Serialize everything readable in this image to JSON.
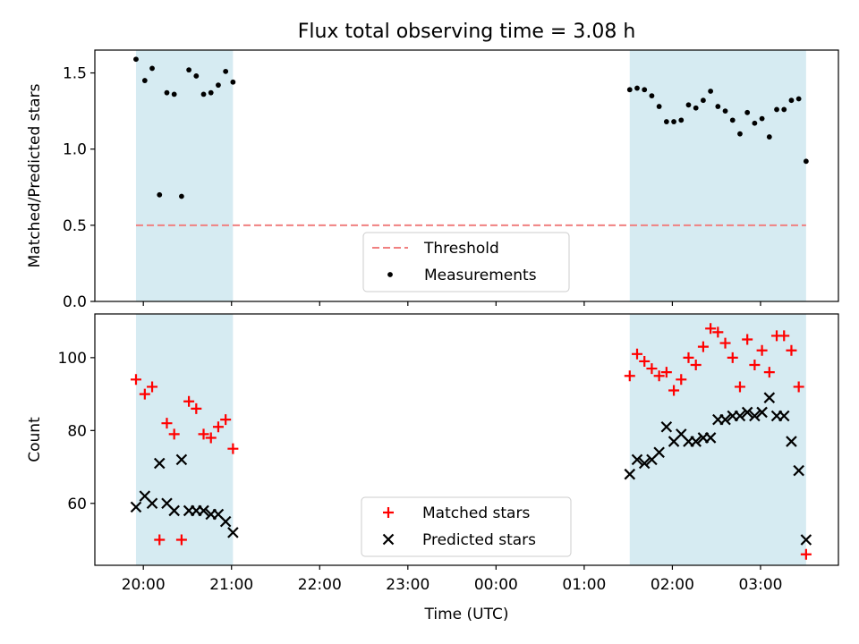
{
  "colors": {
    "band": "#add8e6",
    "threshold": "#f08080",
    "matched": "#ff0000",
    "predicted": "#000000",
    "measurement": "#000000"
  },
  "chart_data": [
    {
      "type": "scatter",
      "title": "Flux total observing time = 3.08 h",
      "xlabel": "",
      "ylabel": "Matched/Predicted stars",
      "x_axis": "time (UTC), shared with lower panel",
      "ylim": [
        0,
        1.65
      ],
      "yticks": [
        "0.0",
        "0.5",
        "1.0",
        "1.5"
      ],
      "ytick_values": [
        0,
        0.5,
        1.0,
        1.5
      ],
      "shaded_intervals": [
        [
          "19:55",
          "21:01"
        ],
        [
          "01:31",
          "03:31"
        ]
      ],
      "legend_position": "bottom-center",
      "series": [
        {
          "name": "Threshold",
          "kind": "dashed-line",
          "color": "#f08080",
          "points": [
            [
              "19:55",
              0.5
            ],
            [
              "03:31",
              0.5
            ]
          ]
        },
        {
          "name": "Measurements",
          "kind": "dot",
          "color": "#000000",
          "points": [
            [
              "19:55",
              1.59
            ],
            [
              "20:01",
              1.45
            ],
            [
              "20:06",
              1.53
            ],
            [
              "20:11",
              0.7
            ],
            [
              "20:16",
              1.37
            ],
            [
              "20:21",
              1.36
            ],
            [
              "20:26",
              0.69
            ],
            [
              "20:31",
              1.52
            ],
            [
              "20:36",
              1.48
            ],
            [
              "20:41",
              1.36
            ],
            [
              "20:46",
              1.37
            ],
            [
              "20:51",
              1.42
            ],
            [
              "20:56",
              1.51
            ],
            [
              "21:01",
              1.44
            ],
            [
              "01:31",
              1.39
            ],
            [
              "01:36",
              1.4
            ],
            [
              "01:41",
              1.39
            ],
            [
              "01:46",
              1.35
            ],
            [
              "01:51",
              1.28
            ],
            [
              "01:56",
              1.18
            ],
            [
              "02:01",
              1.18
            ],
            [
              "02:06",
              1.19
            ],
            [
              "02:11",
              1.29
            ],
            [
              "02:16",
              1.27
            ],
            [
              "02:21",
              1.32
            ],
            [
              "02:26",
              1.38
            ],
            [
              "02:31",
              1.28
            ],
            [
              "02:36",
              1.25
            ],
            [
              "02:41",
              1.19
            ],
            [
              "02:46",
              1.1
            ],
            [
              "02:51",
              1.24
            ],
            [
              "02:56",
              1.17
            ],
            [
              "03:01",
              1.2
            ],
            [
              "03:06",
              1.08
            ],
            [
              "03:11",
              1.26
            ],
            [
              "03:16",
              1.26
            ],
            [
              "03:21",
              1.32
            ],
            [
              "03:26",
              1.33
            ],
            [
              "03:31",
              0.92
            ]
          ]
        }
      ]
    },
    {
      "type": "scatter",
      "title": "",
      "xlabel": "Time (UTC)",
      "ylabel": "Count",
      "ylim": [
        43,
        112
      ],
      "yticks": [
        "60",
        "80",
        "100"
      ],
      "ytick_values": [
        60,
        80,
        100
      ],
      "xticks": [
        "20:00",
        "21:00",
        "22:00",
        "23:00",
        "00:00",
        "01:00",
        "02:00",
        "03:00"
      ],
      "xlim": [
        "19:27",
        "03:53"
      ],
      "shaded_intervals": [
        [
          "19:55",
          "21:01"
        ],
        [
          "01:31",
          "03:31"
        ]
      ],
      "legend_position": "bottom-center",
      "series": [
        {
          "name": "Matched stars",
          "kind": "plus",
          "color": "#ff0000",
          "points": [
            [
              "19:55",
              94
            ],
            [
              "20:01",
              90
            ],
            [
              "20:06",
              92
            ],
            [
              "20:11",
              50
            ],
            [
              "20:16",
              82
            ],
            [
              "20:21",
              79
            ],
            [
              "20:26",
              50
            ],
            [
              "20:31",
              88
            ],
            [
              "20:36",
              86
            ],
            [
              "20:41",
              79
            ],
            [
              "20:46",
              78
            ],
            [
              "20:51",
              81
            ],
            [
              "20:56",
              83
            ],
            [
              "21:01",
              75
            ],
            [
              "01:31",
              95
            ],
            [
              "01:36",
              101
            ],
            [
              "01:41",
              99
            ],
            [
              "01:46",
              97
            ],
            [
              "01:51",
              95
            ],
            [
              "01:56",
              96
            ],
            [
              "02:01",
              91
            ],
            [
              "02:06",
              94
            ],
            [
              "02:11",
              100
            ],
            [
              "02:16",
              98
            ],
            [
              "02:21",
              103
            ],
            [
              "02:26",
              108
            ],
            [
              "02:31",
              107
            ],
            [
              "02:36",
              104
            ],
            [
              "02:41",
              100
            ],
            [
              "02:46",
              92
            ],
            [
              "02:51",
              105
            ],
            [
              "02:56",
              98
            ],
            [
              "03:01",
              102
            ],
            [
              "03:06",
              96
            ],
            [
              "03:11",
              106
            ],
            [
              "03:16",
              106
            ],
            [
              "03:21",
              102
            ],
            [
              "03:26",
              92
            ],
            [
              "03:31",
              46
            ]
          ]
        },
        {
          "name": "Predicted stars",
          "kind": "x",
          "color": "#000000",
          "points": [
            [
              "19:55",
              59
            ],
            [
              "20:01",
              62
            ],
            [
              "20:06",
              60
            ],
            [
              "20:11",
              71
            ],
            [
              "20:16",
              60
            ],
            [
              "20:21",
              58
            ],
            [
              "20:26",
              72
            ],
            [
              "20:31",
              58
            ],
            [
              "20:36",
              58
            ],
            [
              "20:41",
              58
            ],
            [
              "20:46",
              57
            ],
            [
              "20:51",
              57
            ],
            [
              "20:56",
              55
            ],
            [
              "21:01",
              52
            ],
            [
              "01:31",
              68
            ],
            [
              "01:36",
              72
            ],
            [
              "01:41",
              71
            ],
            [
              "01:46",
              72
            ],
            [
              "01:51",
              74
            ],
            [
              "01:56",
              81
            ],
            [
              "02:01",
              77
            ],
            [
              "02:06",
              79
            ],
            [
              "02:11",
              77
            ],
            [
              "02:16",
              77
            ],
            [
              "02:21",
              78
            ],
            [
              "02:26",
              78
            ],
            [
              "02:31",
              83
            ],
            [
              "02:36",
              83
            ],
            [
              "02:41",
              84
            ],
            [
              "02:46",
              84
            ],
            [
              "02:51",
              85
            ],
            [
              "02:56",
              84
            ],
            [
              "03:01",
              85
            ],
            [
              "03:06",
              89
            ],
            [
              "03:11",
              84
            ],
            [
              "03:16",
              84
            ],
            [
              "03:21",
              77
            ],
            [
              "03:26",
              69
            ],
            [
              "03:31",
              50
            ]
          ]
        }
      ]
    }
  ]
}
